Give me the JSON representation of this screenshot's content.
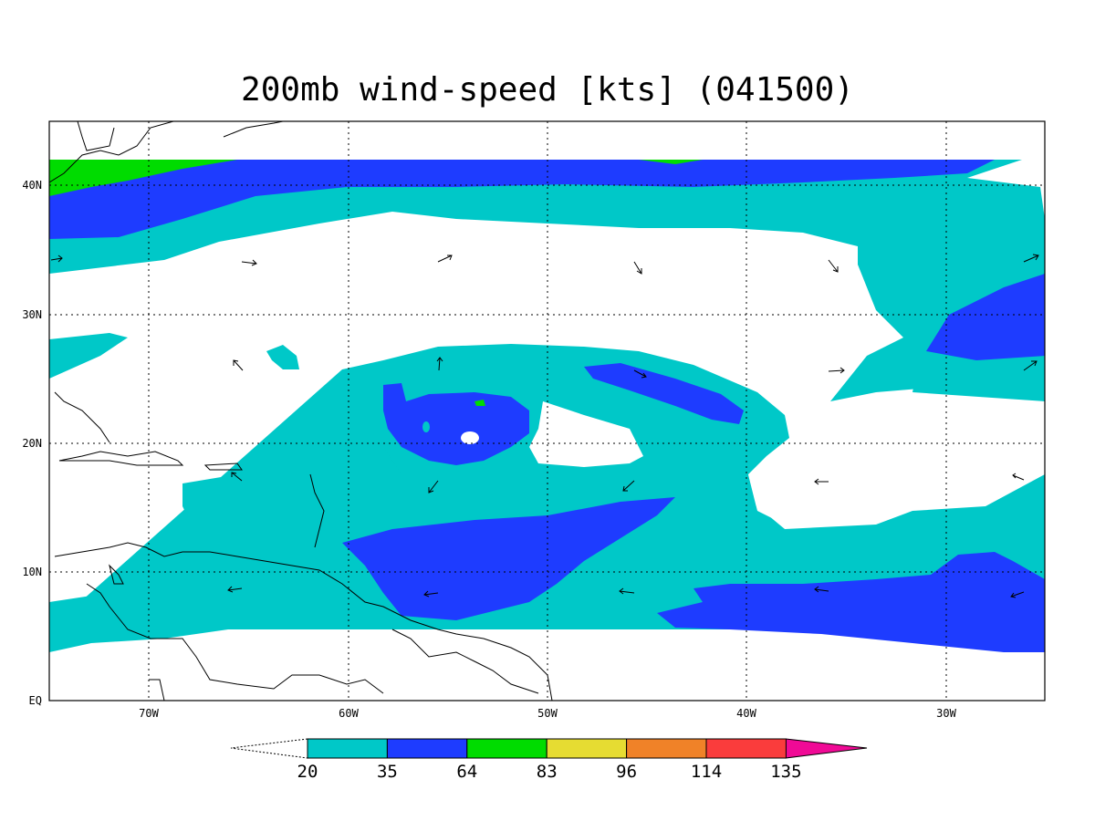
{
  "title": "200mb wind-speed [kts] (041500)",
  "axes": {
    "lon_ticks": [
      "70W",
      "60W",
      "50W",
      "40W",
      "30W"
    ],
    "lat_ticks": [
      "40N",
      "30N",
      "20N",
      "10N",
      "EQ"
    ]
  },
  "colorbar": {
    "levels": [
      "20",
      "35",
      "64",
      "83",
      "96",
      "114",
      "135"
    ],
    "colors": [
      "#00c8c8",
      "#1e3cff",
      "#00dc00",
      "#e6dc32",
      "#f08228",
      "#fa3c3c",
      "#f00a96"
    ]
  },
  "colors": {
    "below_20": "#ffffff",
    "level_20_35": "#00c8c8",
    "level_35_64": "#1e3cff",
    "level_64_83": "#00dc00",
    "frame": "#000000"
  }
}
